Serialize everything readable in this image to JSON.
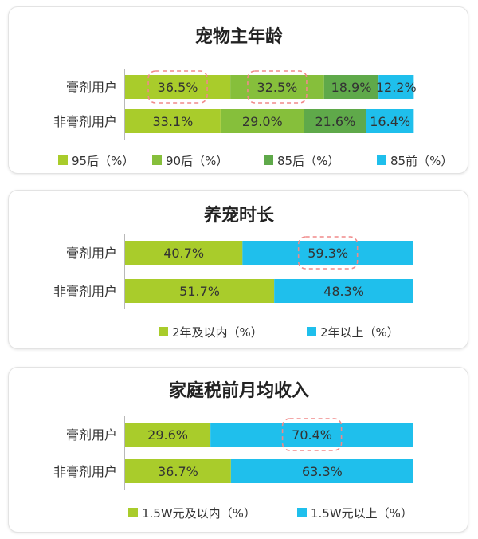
{
  "colors": {
    "c1": "#a9cc2b",
    "c2": "#86bf3b",
    "c3": "#5fa94a",
    "c4": "#1fbfec"
  },
  "chart_data": [
    {
      "type": "bar",
      "stacked": true,
      "orientation": "horizontal",
      "title": "宠物主年龄",
      "categories": [
        "膏剂用户",
        "非膏剂用户"
      ],
      "series": [
        {
          "name": "95后（%）",
          "values": [
            36.5,
            33.1
          ],
          "color": "#a9cc2b"
        },
        {
          "name": "90后（%）",
          "values": [
            32.5,
            29.0
          ],
          "color": "#86bf3b"
        },
        {
          "name": "85后（%）",
          "values": [
            18.9,
            21.6
          ],
          "color": "#5fa94a"
        },
        {
          "name": "85前（%）",
          "values": [
            12.2,
            16.4
          ],
          "color": "#1fbfec"
        }
      ],
      "labels": [
        [
          "36.5%",
          "32.5%",
          "18.9%",
          "12.2%"
        ],
        [
          "33.1%",
          "29.0%",
          "21.6%",
          "16.4%"
        ]
      ],
      "highlighted": [
        [
          0,
          0
        ],
        [
          0,
          1
        ]
      ],
      "xlim": [
        0,
        100
      ],
      "legend": "bottom"
    },
    {
      "type": "bar",
      "stacked": true,
      "orientation": "horizontal",
      "title": "养宠时长",
      "categories": [
        "膏剂用户",
        "非膏剂用户"
      ],
      "series": [
        {
          "name": "2年及以内（%）",
          "values": [
            40.7,
            51.7
          ],
          "color": "#a9cc2b"
        },
        {
          "name": "2年以上（%）",
          "values": [
            59.3,
            48.3
          ],
          "color": "#1fbfec"
        }
      ],
      "labels": [
        [
          "40.7%",
          "59.3%"
        ],
        [
          "51.7%",
          "48.3%"
        ]
      ],
      "highlighted": [
        [
          0,
          1
        ]
      ],
      "xlim": [
        0,
        100
      ],
      "legend": "bottom"
    },
    {
      "type": "bar",
      "stacked": true,
      "orientation": "horizontal",
      "title": "家庭税前月均收入",
      "categories": [
        "膏剂用户",
        "非膏剂用户"
      ],
      "series": [
        {
          "name": "1.5W元及以内（%）",
          "values": [
            29.6,
            36.7
          ],
          "color": "#a9cc2b"
        },
        {
          "name": "1.5W元以上（%）",
          "values": [
            70.4,
            63.3
          ],
          "color": "#1fbfec"
        }
      ],
      "labels": [
        [
          "29.6%",
          "70.4%"
        ],
        [
          "36.7%",
          "63.3%"
        ]
      ],
      "highlighted": [
        [
          0,
          1
        ]
      ],
      "xlim": [
        0,
        100
      ],
      "legend": "bottom"
    }
  ]
}
